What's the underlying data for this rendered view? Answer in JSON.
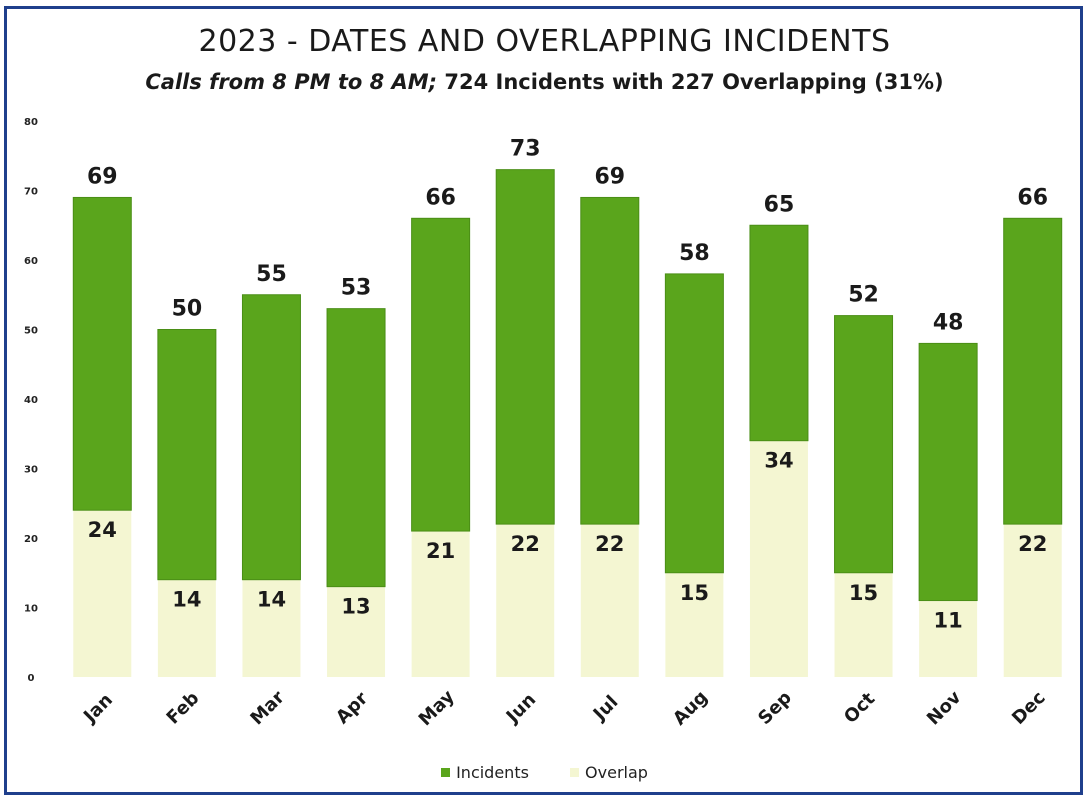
{
  "chart_data": {
    "type": "bar",
    "title": "2023 - DATES AND OVERLAPPING INCIDENTS",
    "subtitle_italic": "Calls from 8 PM to 8 AM;",
    "subtitle_rest": "724 Incidents with 227 Overlapping (31%)",
    "categories": [
      "Jan",
      "Feb",
      "Mar",
      "Apr",
      "May",
      "Jun",
      "Jul",
      "Aug",
      "Sep",
      "Oct",
      "Nov",
      "Dec"
    ],
    "series": [
      {
        "name": "Incidents",
        "values": [
          69,
          50,
          55,
          53,
          66,
          73,
          69,
          58,
          65,
          52,
          48,
          66
        ],
        "color": "#5aa51c"
      },
      {
        "name": "Overlap",
        "values": [
          24,
          14,
          14,
          13,
          21,
          22,
          22,
          15,
          34,
          15,
          11,
          22
        ],
        "color": "#f4f6d2"
      }
    ],
    "ylim": [
      0,
      80
    ],
    "yticks": [
      0,
      10,
      20,
      30,
      40,
      50,
      60,
      70,
      80
    ],
    "legend_position": "bottom",
    "grid": false
  }
}
